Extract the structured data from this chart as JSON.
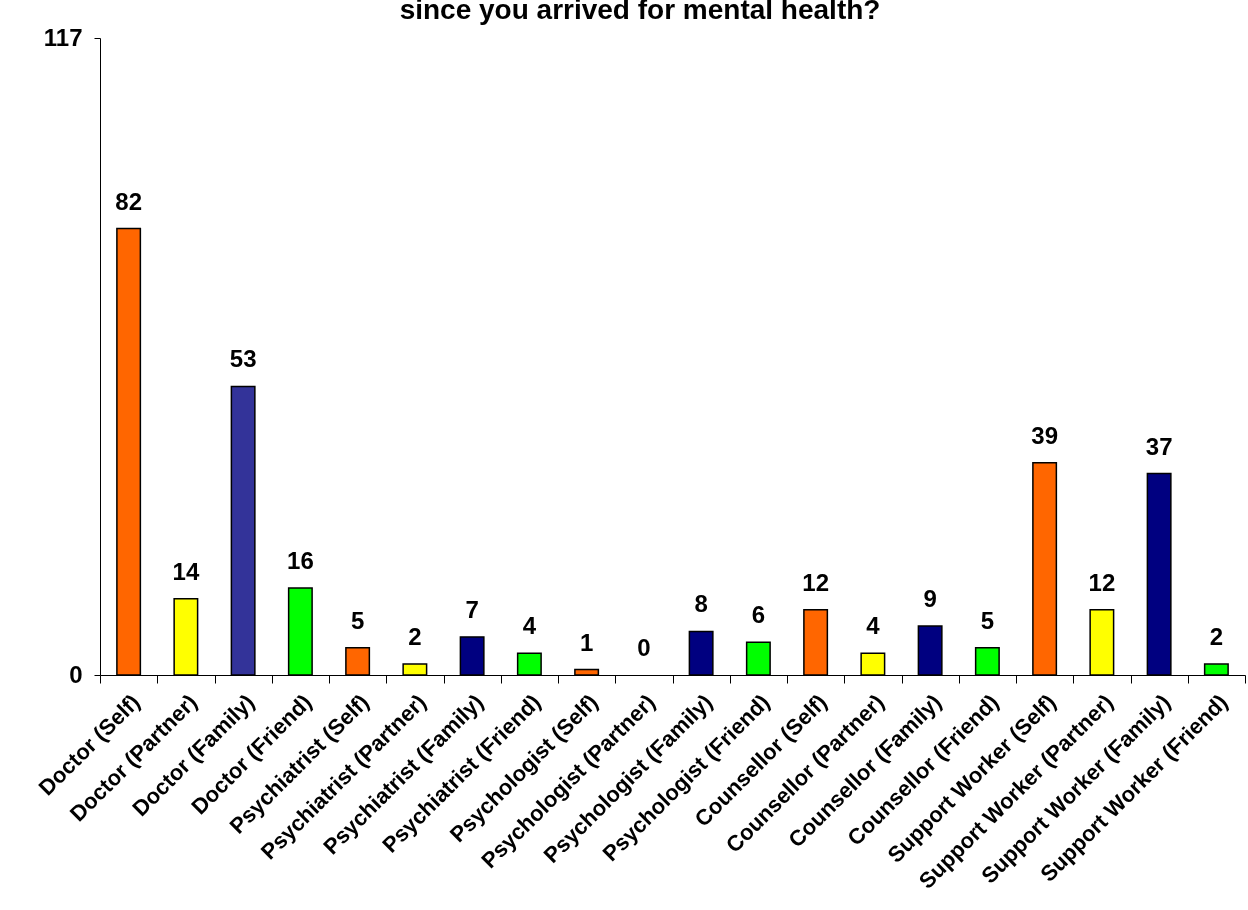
{
  "chart_data": {
    "type": "bar",
    "title": "since you arrived for mental health?",
    "categories": [
      "Doctor (Self)",
      "Doctor (Partner)",
      "Doctor (Family)",
      "Doctor (Friend)",
      "Psychiatrist (Self)",
      "Psychiatrist (Partner)",
      "Psychiatrist (Family)",
      "Psychiatrist (Friend)",
      "Psychologist (Self)",
      "Psychologist (Partner)",
      "Psychologist (Family)",
      "Psychologist (Friend)",
      "Counsellor (Self)",
      "Counsellor (Partner)",
      "Counsellor (Family)",
      "Counsellor (Friend)",
      "Support Worker (Self)",
      "Support Worker (Partner)",
      "Support Worker (Family)",
      "Support Worker (Friend)"
    ],
    "values": [
      82,
      14,
      53,
      16,
      5,
      2,
      7,
      4,
      1,
      0,
      8,
      6,
      12,
      4,
      9,
      5,
      39,
      12,
      37,
      2
    ],
    "colors": [
      "#ff6600",
      "#ffff00",
      "#333399",
      "#00ff00",
      "#ff6600",
      "#ffff00",
      "#000080",
      "#00ff00",
      "#ff6600",
      "#ffff00",
      "#000080",
      "#00ff00",
      "#ff6600",
      "#ffff00",
      "#000080",
      "#00ff00",
      "#ff6600",
      "#ffff00",
      "#000080",
      "#00ff00"
    ],
    "ylim": [
      0,
      117
    ],
    "yticks": [
      0,
      117
    ],
    "data_labels": true
  }
}
